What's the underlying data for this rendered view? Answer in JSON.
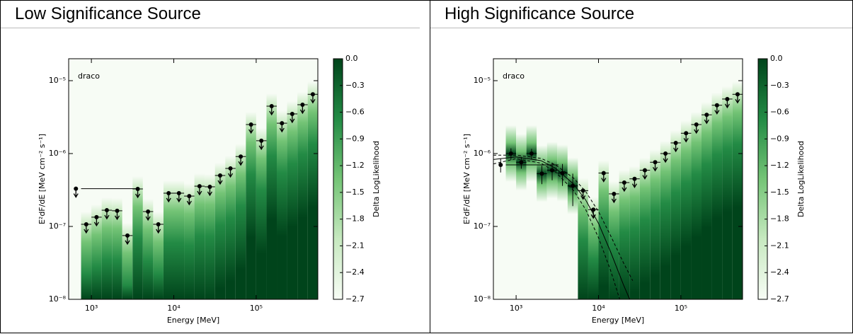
{
  "table": {
    "headers": [
      "Low Significance Source",
      "High Significance Source"
    ]
  },
  "chart_data": [
    {
      "type": "sed",
      "annotation": "draco",
      "xlabel": "Energy [MeV]",
      "ylabel": "E²dF/dE [MeV cm⁻² s⁻¹]",
      "xscale": "log",
      "yscale": "log",
      "xlim": [
        530,
        560000
      ],
      "ylim": [
        1e-08,
        2e-05
      ],
      "xticks": [
        {
          "value": 1000,
          "label": "10³"
        },
        {
          "value": 10000,
          "label": "10⁴"
        },
        {
          "value": 100000,
          "label": "10⁵"
        }
      ],
      "yticks": [
        {
          "value": 1e-08,
          "label": "10⁻⁸"
        },
        {
          "value": 1e-07,
          "label": "10⁻⁷"
        },
        {
          "value": 1e-06,
          "label": "10⁻⁶"
        },
        {
          "value": 1e-05,
          "label": "10⁻⁵"
        }
      ],
      "x": [
        649,
        866,
        1155,
        1540,
        2054,
        2738,
        3652,
        4870,
        6494,
        8660,
        11548,
        15399,
        20535,
        27384,
        36517,
        48697,
        64938,
        86596,
        115478,
        153993,
        205353,
        273842,
        365174,
        486968
      ],
      "values": [
        3.3e-07,
        1.07e-07,
        1.34e-07,
        1.67e-07,
        1.64e-07,
        7.5e-08,
        3.27e-07,
        1.6e-07,
        1.07e-07,
        2.86e-07,
        2.86e-07,
        2.61e-07,
        3.57e-07,
        3.5e-07,
        5e-07,
        6.25e-07,
        9.1e-07,
        2.5e-06,
        1.5e-06,
        4.47e-06,
        2.61e-06,
        3.5e-06,
        4.68e-06,
        6.5e-06
      ],
      "yerr": [
        null,
        null,
        null,
        null,
        null,
        null,
        null,
        null,
        null,
        null,
        null,
        null,
        null,
        null,
        null,
        null,
        null,
        null,
        null,
        null,
        null,
        null,
        null,
        null
      ],
      "upper_limit": [
        true,
        true,
        true,
        true,
        true,
        true,
        true,
        true,
        true,
        true,
        true,
        true,
        true,
        true,
        true,
        true,
        true,
        true,
        true,
        true,
        true,
        true,
        true,
        true
      ],
      "colorbar": {
        "label": "Delta LogLikelihood",
        "clim": [
          -2.7,
          0
        ],
        "ticks": [
          {
            "value": 0,
            "label": "0.0"
          },
          {
            "value": -0.3,
            "label": "−0.3"
          },
          {
            "value": -0.6,
            "label": "−0.6"
          },
          {
            "value": -0.9,
            "label": "−0.9"
          },
          {
            "value": -1.2,
            "label": "−1.2"
          },
          {
            "value": -1.5,
            "label": "−1.5"
          },
          {
            "value": -1.8,
            "label": "−1.8"
          },
          {
            "value": -2.1,
            "label": "−2.1"
          },
          {
            "value": -2.4,
            "label": "−2.4"
          },
          {
            "value": -2.7,
            "label": "−2.7"
          }
        ],
        "colormap": [
          "#f7fcf5",
          "#c7e9c0",
          "#74c476",
          "#238b45",
          "#00441b"
        ]
      }
    },
    {
      "type": "sed",
      "annotation": "draco",
      "xlabel": "Energy [MeV]",
      "ylabel": "E²dF/dE [MeV cm⁻² s⁻¹]",
      "xscale": "log",
      "yscale": "log",
      "xlim": [
        530,
        560000
      ],
      "ylim": [
        1e-08,
        2e-05
      ],
      "xticks": [
        {
          "value": 1000,
          "label": "10³"
        },
        {
          "value": 10000,
          "label": "10⁴"
        },
        {
          "value": 100000,
          "label": "10⁵"
        }
      ],
      "yticks": [
        {
          "value": 1e-08,
          "label": "10⁻⁸"
        },
        {
          "value": 1e-07,
          "label": "10⁻⁷"
        },
        {
          "value": 1e-06,
          "label": "10⁻⁶"
        },
        {
          "value": 1e-05,
          "label": "10⁻⁵"
        }
      ],
      "x": [
        649,
        866,
        1155,
        1540,
        2054,
        2738,
        3652,
        4870,
        6494,
        8660,
        11548,
        15399,
        20535,
        27384,
        36517,
        48697,
        64938,
        86596,
        115478,
        153993,
        205353,
        273842,
        365174,
        486968
      ],
      "values": [
        7e-07,
        1e-06,
        7.6e-07,
        1e-06,
        5.3e-07,
        5.9e-07,
        5.4e-07,
        3.6e-07,
        3.1e-07,
        1.7e-07,
        5.4e-07,
        2.8e-07,
        4e-07,
        4.5e-07,
        5.9e-07,
        7.6e-07,
        1e-06,
        1.4e-06,
        1.9e-06,
        2.5e-06,
        3.4e-06,
        4.6e-06,
        5.6e-06,
        6.5e-06
      ],
      "yerr": [
        1.5e-07,
        1.8e-07,
        1.4e-07,
        1.6e-07,
        1.5e-07,
        1.6e-07,
        1.8e-07,
        1.7e-07,
        null,
        null,
        null,
        null,
        null,
        null,
        null,
        null,
        null,
        null,
        null,
        null,
        null,
        null,
        null,
        null
      ],
      "upper_limit": [
        false,
        false,
        false,
        false,
        false,
        false,
        false,
        false,
        true,
        true,
        true,
        true,
        true,
        true,
        true,
        true,
        true,
        true,
        true,
        true,
        true,
        true,
        true,
        true
      ],
      "model": {
        "x": [
          530,
          1000,
          2000,
          3000,
          5000,
          7000,
          10000,
          14000,
          20000,
          26000
        ],
        "y": [
          8.3e-07,
          9e-07,
          8e-07,
          6.3e-07,
          3.8e-07,
          2.3e-07,
          1.1e-07,
          4.5e-08,
          1.6e-08,
          8e-09
        ],
        "upper": [
          9.5e-07,
          9.5e-07,
          8.6e-07,
          7e-07,
          4.6e-07,
          3e-07,
          1.6e-07,
          7.5e-08,
          3.2e-08,
          1.8e-08
        ],
        "lower": [
          7.2e-07,
          8.5e-07,
          7.4e-07,
          5.6e-07,
          3.1e-07,
          1.7e-07,
          7e-08,
          2.5e-08,
          7e-09,
          2.5e-09
        ]
      },
      "colorbar": {
        "label": "Delta LogLikelihood",
        "clim": [
          -2.7,
          0
        ],
        "ticks": [
          {
            "value": 0,
            "label": "0.0"
          },
          {
            "value": -0.3,
            "label": "−0.3"
          },
          {
            "value": -0.6,
            "label": "−0.6"
          },
          {
            "value": -0.9,
            "label": "−0.9"
          },
          {
            "value": -1.2,
            "label": "−1.2"
          },
          {
            "value": -1.5,
            "label": "−1.5"
          },
          {
            "value": -1.8,
            "label": "−1.8"
          },
          {
            "value": -2.1,
            "label": "−2.1"
          },
          {
            "value": -2.4,
            "label": "−2.4"
          },
          {
            "value": -2.7,
            "label": "−2.7"
          }
        ],
        "colormap": [
          "#f7fcf5",
          "#c7e9c0",
          "#74c476",
          "#238b45",
          "#00441b"
        ]
      }
    }
  ]
}
